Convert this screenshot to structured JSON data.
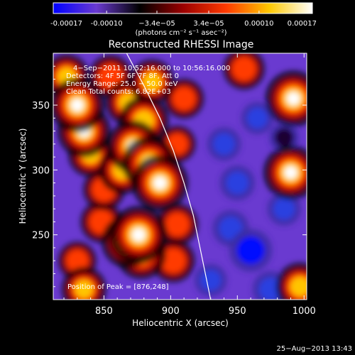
{
  "chart_data": {
    "type": "heatmap",
    "title": "Reconstructed RHESSI Image",
    "xlabel": "Heliocentric X (arcsec)",
    "ylabel": "Heliocentric Y (arcsec)",
    "xlim": [
      812,
      1002
    ],
    "ylim": [
      200,
      390
    ],
    "x_ticks": [
      850,
      900,
      950,
      1000
    ],
    "y_ticks": [
      250,
      300,
      350
    ],
    "colorbar": {
      "range": [
        -0.00017,
        0.00017
      ],
      "tick_values": [
        -0.00017,
        -0.0001,
        -3.4e-05,
        3.4e-05,
        0.0001,
        0.00017
      ],
      "tick_labels": [
        "-0.00017",
        "-0.00010",
        "−3.4e−05",
        "3.4e−05",
        "0.00010",
        "0.00017"
      ],
      "unit_label": "(photons cm⁻² s⁻¹ asec⁻²)",
      "colors": [
        "#0000ff",
        "#6a3ad0",
        "#000000",
        "#9a0000",
        "#ff3a00",
        "#ffc800",
        "#ffffff"
      ]
    },
    "annotations": {
      "time_range": "4−Sep−2011 10:52:16.000 to 10:56:16.000",
      "detectors": "Detectors: 4F 5F 6F 7F 8F, Att 0",
      "energy": "Energy Range: 25.0 − 50.0 keV",
      "clean": "Clean     Total counts: 6.82E+03",
      "peak": "Position of Peak = [876,248]"
    },
    "peak_position": [
      876,
      248
    ],
    "sources": [
      {
        "x": 876,
        "y": 250,
        "value": 1.0
      },
      {
        "x": 868,
        "y": 245,
        "value": 0.85
      },
      {
        "x": 878,
        "y": 235,
        "value": 0.75
      },
      {
        "x": 848,
        "y": 260,
        "value": 0.5
      },
      {
        "x": 892,
        "y": 290,
        "value": 0.95
      },
      {
        "x": 884,
        "y": 305,
        "value": 0.9
      },
      {
        "x": 872,
        "y": 318,
        "value": 0.85
      },
      {
        "x": 864,
        "y": 300,
        "value": 0.7
      },
      {
        "x": 880,
        "y": 338,
        "value": 0.75
      },
      {
        "x": 868,
        "y": 352,
        "value": 0.6
      },
      {
        "x": 886,
        "y": 368,
        "value": 0.6
      },
      {
        "x": 910,
        "y": 355,
        "value": 0.45
      },
      {
        "x": 835,
        "y": 330,
        "value": 0.85
      },
      {
        "x": 830,
        "y": 350,
        "value": 0.9
      },
      {
        "x": 840,
        "y": 312,
        "value": 0.6
      },
      {
        "x": 822,
        "y": 372,
        "value": 0.6
      },
      {
        "x": 855,
        "y": 372,
        "value": 0.55
      },
      {
        "x": 850,
        "y": 285,
        "value": 0.5
      },
      {
        "x": 830,
        "y": 230,
        "value": 0.4
      },
      {
        "x": 835,
        "y": 208,
        "value": 0.6
      },
      {
        "x": 902,
        "y": 230,
        "value": 0.55
      },
      {
        "x": 905,
        "y": 258,
        "value": 0.5
      },
      {
        "x": 905,
        "y": 320,
        "value": 0.35
      },
      {
        "x": 955,
        "y": 378,
        "value": 0.5
      },
      {
        "x": 992,
        "y": 355,
        "value": 0.95
      },
      {
        "x": 990,
        "y": 298,
        "value": 0.9
      },
      {
        "x": 997,
        "y": 210,
        "value": 0.7
      },
      {
        "x": 960,
        "y": 238,
        "value": -0.85
      },
      {
        "x": 945,
        "y": 255,
        "value": -0.6
      },
      {
        "x": 975,
        "y": 208,
        "value": -0.6
      },
      {
        "x": 950,
        "y": 290,
        "value": -0.55
      },
      {
        "x": 985,
        "y": 270,
        "value": -0.5
      },
      {
        "x": 940,
        "y": 320,
        "value": -0.5
      },
      {
        "x": 965,
        "y": 340,
        "value": -0.45
      },
      {
        "x": 985,
        "y": 325,
        "value": -0.35
      },
      {
        "x": 930,
        "y": 215,
        "value": -0.45
      }
    ],
    "limb_curve": [
      [
        867,
        390
      ],
      [
        880,
        365
      ],
      [
        892,
        340
      ],
      [
        902,
        315
      ],
      [
        910,
        290
      ],
      [
        917,
        265
      ],
      [
        922,
        240
      ],
      [
        927,
        215
      ],
      [
        930,
        200
      ]
    ]
  },
  "footer": {
    "timestamp": "25−Aug−2013 13:43"
  }
}
